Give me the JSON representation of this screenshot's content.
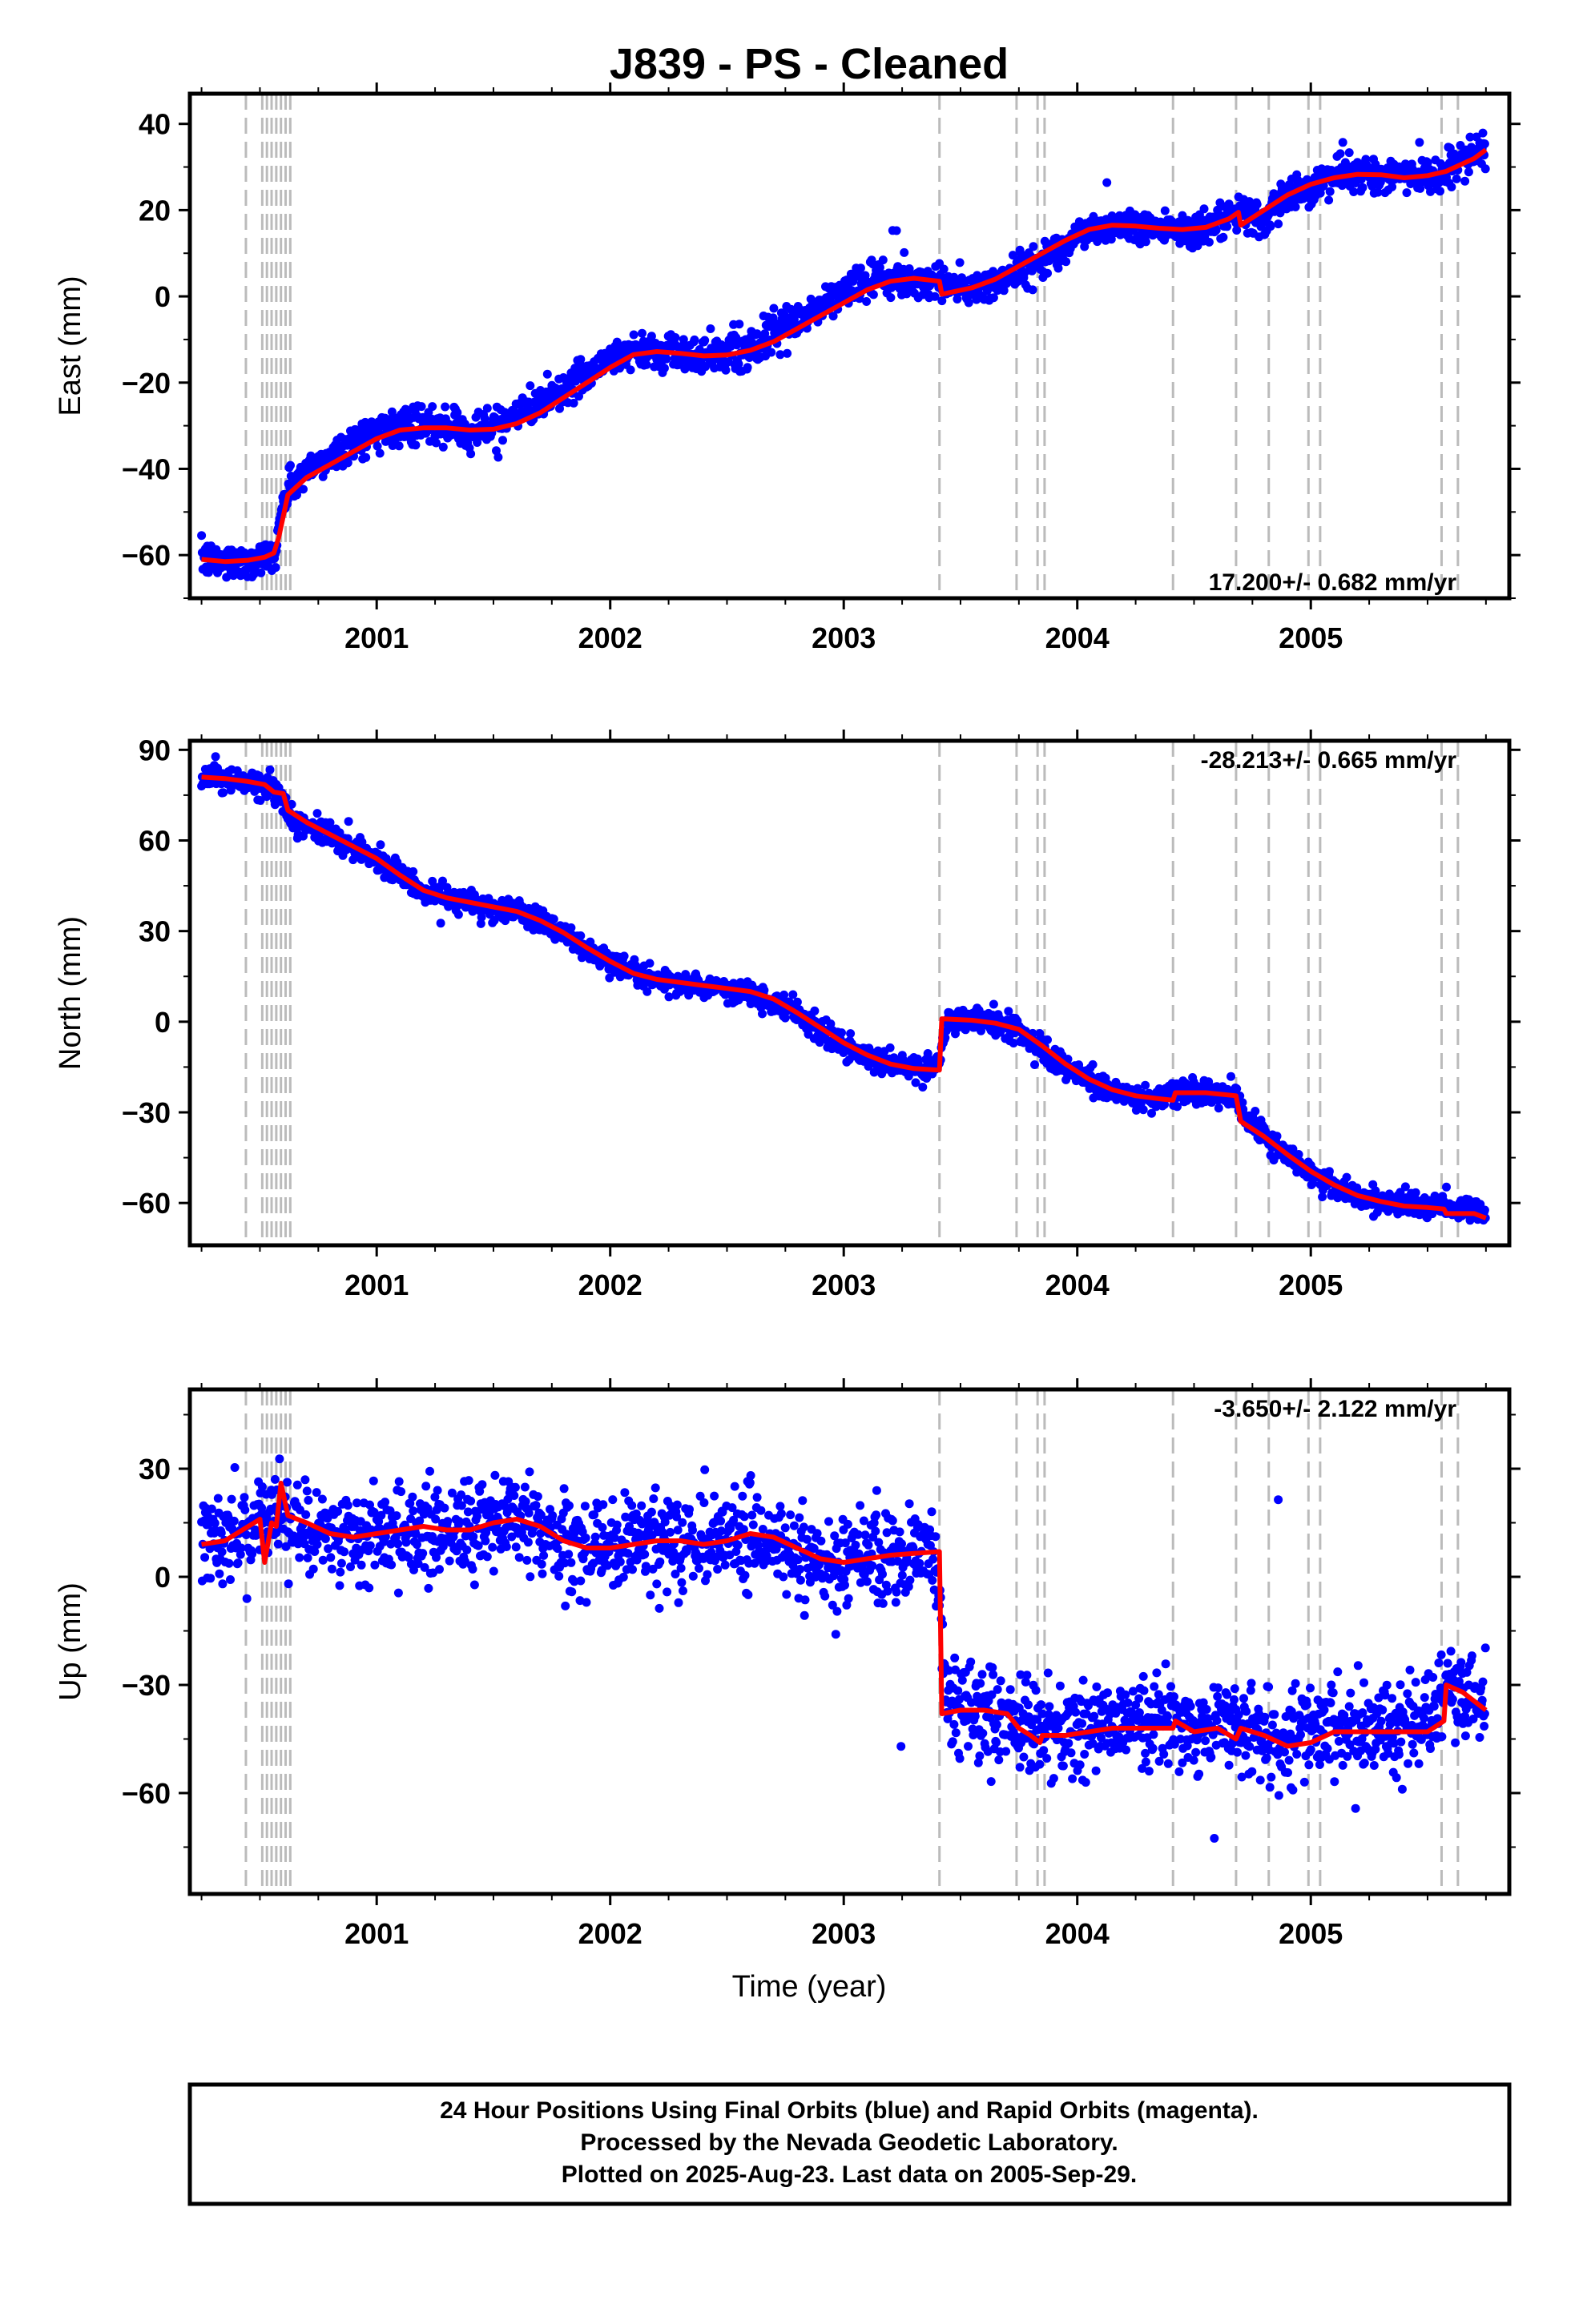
{
  "title": "J839  - PS - Cleaned",
  "xlabel": "Time (year)",
  "footer": {
    "line1": "24 Hour Positions Using Final Orbits (blue) and Rapid Orbits (magenta).",
    "line2": "Processed by the Nevada Geodetic Laboratory.",
    "line3": "Plotted on 2025-Aug-23. Last data on 2005-Sep-29."
  },
  "colors": {
    "final_orbits": "#0000ff",
    "model": "#ff0000",
    "event_lines": "#bbbbbb"
  },
  "chart_data": [
    {
      "type": "scatter",
      "component": "East",
      "ylabel": "East (mm)",
      "xlim": [
        2000.2,
        2005.85
      ],
      "ylim": [
        -70,
        47
      ],
      "yticks": [
        -60,
        -40,
        -20,
        0,
        20,
        40
      ],
      "xticks": [
        2001,
        2002,
        2003,
        2004,
        2005
      ],
      "rate_label": "17.200+/- 0.682 mm/yr",
      "rate_position": "bottom-right",
      "series": [
        {
          "marker": "dot",
          "x": [
            2000.25,
            2000.32,
            2000.4,
            2000.48,
            2000.56,
            2000.6,
            2000.63,
            2000.7,
            2000.78,
            2000.86,
            2000.95,
            2001.05,
            2001.15,
            2001.25,
            2001.35,
            2001.45,
            2001.55,
            2001.65,
            2001.75,
            2001.85,
            2001.95,
            2002.05,
            2002.15,
            2002.25,
            2002.35,
            2002.45,
            2002.55,
            2002.65,
            2002.75,
            2002.85,
            2002.95,
            2003.05,
            2003.15,
            2003.25,
            2003.35,
            2003.45,
            2003.55,
            2003.65,
            2003.75,
            2003.85,
            2003.95,
            2004.05,
            2004.15,
            2004.25,
            2004.35,
            2004.45,
            2004.55,
            2004.65,
            2004.7,
            2004.78,
            2004.86,
            2004.95,
            2005.05,
            2005.15,
            2005.25,
            2005.35,
            2005.45,
            2005.55,
            2005.62,
            2005.7,
            2005.75
          ],
          "y": [
            -61,
            -61.5,
            -61.5,
            -61,
            -60,
            -48,
            -44,
            -41,
            -38,
            -35,
            -32.5,
            -30.5,
            -30,
            -30.5,
            -31,
            -30.5,
            -29,
            -26,
            -23,
            -19.5,
            -16,
            -13,
            -12.5,
            -13,
            -13.5,
            -13.5,
            -12.5,
            -10.5,
            -7.5,
            -4,
            -0.5,
            2.5,
            4,
            4,
            3.5,
            3,
            1.5,
            3,
            6,
            9,
            12,
            15.5,
            16.5,
            16.5,
            16,
            15.5,
            16,
            17.5,
            19.5,
            17.5,
            21,
            24.5,
            27,
            28,
            28.5,
            28,
            28,
            28.5,
            30.5,
            32,
            34
          ]
        }
      ],
      "model": {
        "x": [
          2000.25,
          2000.35,
          2000.45,
          2000.52,
          2000.56,
          2000.58,
          2000.62,
          2000.7,
          2000.8,
          2000.9,
          2001.0,
          2001.1,
          2001.2,
          2001.3,
          2001.4,
          2001.5,
          2001.6,
          2001.7,
          2001.8,
          2001.9,
          2002.0,
          2002.1,
          2002.2,
          2002.3,
          2002.4,
          2002.5,
          2002.6,
          2002.7,
          2002.8,
          2002.9,
          2003.0,
          2003.1,
          2003.2,
          2003.3,
          2003.41,
          2003.42,
          2003.55,
          2003.65,
          2003.75,
          2003.85,
          2003.95,
          2004.05,
          2004.15,
          2004.25,
          2004.35,
          2004.45,
          2004.55,
          2004.65,
          2004.69,
          2004.7,
          2004.8,
          2004.9,
          2005.0,
          2005.1,
          2005.2,
          2005.3,
          2005.4,
          2005.5,
          2005.58,
          2005.62,
          2005.7,
          2005.75
        ],
        "y": [
          -61,
          -61.5,
          -61.2,
          -60.5,
          -59.5,
          -56,
          -46,
          -42,
          -39,
          -36,
          -33,
          -31,
          -30.5,
          -30.5,
          -31,
          -30.8,
          -29.5,
          -27,
          -23.5,
          -20,
          -16.5,
          -13.5,
          -12.8,
          -13.2,
          -13.8,
          -13.6,
          -12.5,
          -10.5,
          -7.5,
          -4.5,
          -1.5,
          1.5,
          3.5,
          4.2,
          3.5,
          0.5,
          2,
          4,
          7,
          10,
          13,
          15.5,
          16.5,
          16.3,
          15.8,
          15.5,
          16,
          18,
          19.5,
          16.5,
          20,
          23.5,
          26,
          27.5,
          28.3,
          28.2,
          27.5,
          28,
          29,
          30,
          32,
          34
        ]
      }
    },
    {
      "type": "scatter",
      "component": "North",
      "ylabel": "North (mm)",
      "xlim": [
        2000.2,
        2005.85
      ],
      "ylim": [
        -74,
        93
      ],
      "yticks": [
        -60,
        -30,
        0,
        30,
        60,
        90
      ],
      "xticks": [
        2001,
        2002,
        2003,
        2004,
        2005
      ],
      "rate_label": "-28.213+/- 0.665 mm/yr",
      "rate_position": "top-right",
      "series": [
        {
          "marker": "dot",
          "x": [
            2000.25,
            2000.35,
            2000.45,
            2000.52,
            2000.58,
            2000.63,
            2000.7,
            2000.8,
            2000.9,
            2001.0,
            2001.1,
            2001.2,
            2001.3,
            2001.4,
            2001.5,
            2001.6,
            2001.7,
            2001.8,
            2001.9,
            2002.0,
            2002.1,
            2002.2,
            2002.3,
            2002.4,
            2002.5,
            2002.6,
            2002.7,
            2002.8,
            2002.9,
            2003.0,
            2003.1,
            2003.2,
            2003.3,
            2003.4,
            2003.45,
            2003.55,
            2003.65,
            2003.75,
            2003.85,
            2003.95,
            2004.05,
            2004.15,
            2004.25,
            2004.35,
            2004.42,
            2004.5,
            2004.6,
            2004.68,
            2004.72,
            2004.8,
            2004.9,
            2005.0,
            2005.1,
            2005.2,
            2005.3,
            2005.4,
            2005.5,
            2005.6,
            2005.7,
            2005.75
          ],
          "y": [
            81,
            80.5,
            79,
            78,
            76,
            68,
            65,
            61,
            57.5,
            53,
            49,
            43,
            40.5,
            39,
            38,
            36.5,
            33.5,
            29,
            24,
            20,
            16,
            14,
            12.5,
            11.5,
            10.5,
            9.5,
            7,
            2.5,
            -3,
            -8,
            -11.5,
            -14,
            -15.5,
            -16,
            1,
            0.5,
            0,
            -3,
            -9,
            -15,
            -19.5,
            -23,
            -24.5,
            -25.5,
            -24,
            -24,
            -24,
            -25,
            -32,
            -38,
            -44,
            -49.5,
            -54,
            -57.5,
            -59.5,
            -60.5,
            -61,
            -61.5,
            -62.5,
            -64
          ]
        }
      ],
      "model": {
        "x": [
          2000.25,
          2000.35,
          2000.45,
          2000.52,
          2000.56,
          2000.6,
          2000.62,
          2000.7,
          2000.8,
          2000.9,
          2001.0,
          2001.1,
          2001.2,
          2001.3,
          2001.4,
          2001.5,
          2001.6,
          2001.7,
          2001.8,
          2001.9,
          2002.0,
          2002.1,
          2002.2,
          2002.3,
          2002.4,
          2002.5,
          2002.6,
          2002.7,
          2002.8,
          2002.9,
          2003.0,
          2003.1,
          2003.2,
          2003.3,
          2003.41,
          2003.42,
          2003.55,
          2003.65,
          2003.75,
          2003.85,
          2003.95,
          2004.05,
          2004.15,
          2004.25,
          2004.35,
          2004.41,
          2004.42,
          2004.55,
          2004.68,
          2004.7,
          2004.8,
          2004.9,
          2005.0,
          2005.1,
          2005.2,
          2005.3,
          2005.4,
          2005.5,
          2005.57,
          2005.58,
          2005.7,
          2005.75
        ],
        "y": [
          81,
          80.5,
          79.5,
          78.5,
          76,
          75.5,
          70,
          66,
          62,
          58,
          54,
          48.5,
          43.5,
          41,
          39.5,
          38,
          36.5,
          33.5,
          29.5,
          24.5,
          20,
          16,
          14,
          13,
          12,
          11,
          10,
          7.5,
          3,
          -2,
          -7,
          -11,
          -14,
          -15.5,
          -16,
          1,
          0.5,
          -0.5,
          -2.5,
          -8,
          -14,
          -19,
          -22.5,
          -24.5,
          -25.5,
          -26,
          -23.5,
          -23.5,
          -24.5,
          -33,
          -38,
          -44,
          -49.5,
          -54,
          -57.5,
          -59.5,
          -61,
          -61.5,
          -62,
          -63.5,
          -63.5,
          -65
        ]
      }
    },
    {
      "type": "scatter",
      "component": "Up",
      "ylabel": "Up (mm)",
      "xlim": [
        2000.2,
        2005.85
      ],
      "ylim": [
        -88,
        52
      ],
      "yticks": [
        -60,
        -30,
        0,
        30
      ],
      "xticks": [
        2001,
        2002,
        2003,
        2004,
        2005
      ],
      "rate_label": "-3.650+/- 2.122 mm/yr",
      "rate_position": "top-right",
      "series": [
        {
          "marker": "dot",
          "x": [
            2000.25,
            2000.35,
            2000.45,
            2000.52,
            2000.57,
            2000.62,
            2000.7,
            2000.8,
            2000.9,
            2001.0,
            2001.1,
            2001.2,
            2001.3,
            2001.4,
            2001.5,
            2001.6,
            2001.7,
            2001.8,
            2001.9,
            2002.0,
            2002.1,
            2002.2,
            2002.3,
            2002.4,
            2002.5,
            2002.6,
            2002.7,
            2002.8,
            2002.9,
            2003.0,
            2003.1,
            2003.2,
            2003.3,
            2003.38,
            2003.45,
            2003.55,
            2003.65,
            2003.75,
            2003.85,
            2003.95,
            2004.05,
            2004.15,
            2004.25,
            2004.35,
            2004.45,
            2004.55,
            2004.65,
            2004.75,
            2004.85,
            2004.95,
            2005.05,
            2005.15,
            2005.25,
            2005.35,
            2005.45,
            2005.52,
            2005.58,
            2005.65,
            2005.75
          ],
          "y": [
            9,
            10,
            12,
            14,
            20,
            17,
            14,
            12,
            11,
            12,
            13,
            14,
            13,
            13,
            15,
            15,
            12,
            9,
            8,
            9,
            10,
            10,
            9,
            10,
            12,
            11,
            8,
            5,
            4,
            5,
            6,
            7,
            6,
            7,
            -37,
            -37,
            -38,
            -42,
            -44,
            -43,
            -42,
            -42,
            -42,
            -41,
            -42,
            -42,
            -43,
            -44,
            -46,
            -45,
            -42,
            -42,
            -42,
            -42,
            -41,
            -39,
            -30,
            -33,
            -36
          ]
        }
      ],
      "model": {
        "x": [
          2000.25,
          2000.35,
          2000.45,
          2000.5,
          2000.52,
          2000.55,
          2000.57,
          2000.59,
          2000.62,
          2000.7,
          2000.8,
          2000.9,
          2001.0,
          2001.1,
          2001.2,
          2001.3,
          2001.4,
          2001.5,
          2001.6,
          2001.7,
          2001.8,
          2001.9,
          2002.0,
          2002.1,
          2002.2,
          2002.3,
          2002.4,
          2002.5,
          2002.6,
          2002.7,
          2002.8,
          2002.9,
          2003.0,
          2003.1,
          2003.2,
          2003.3,
          2003.41,
          2003.42,
          2003.5,
          2003.6,
          2003.7,
          2003.75,
          2003.8,
          2003.84,
          2003.85,
          2003.95,
          2004.05,
          2004.15,
          2004.25,
          2004.35,
          2004.41,
          2004.42,
          2004.5,
          2004.6,
          2004.68,
          2004.7,
          2004.8,
          2004.9,
          2005.0,
          2005.1,
          2005.2,
          2005.3,
          2005.4,
          2005.5,
          2005.57,
          2005.58,
          2005.65,
          2005.75
        ],
        "y": [
          9,
          10,
          14,
          16,
          4,
          15,
          14,
          26,
          17,
          15,
          12,
          11,
          12,
          13,
          14,
          13,
          13,
          15,
          16,
          14,
          10,
          8,
          8,
          9,
          10,
          10,
          9,
          10,
          12,
          11,
          8,
          5,
          4,
          5,
          6,
          6.5,
          7,
          -38,
          -37,
          -37,
          -38,
          -42,
          -44,
          -46,
          -44,
          -44,
          -43,
          -42,
          -42,
          -42,
          -42,
          -40,
          -43,
          -42,
          -45,
          -42,
          -44,
          -47,
          -46,
          -43,
          -43,
          -43,
          -43,
          -43,
          -40,
          -30,
          -32,
          -37
        ]
      }
    }
  ],
  "event_lines": [
    2000.44,
    2000.51,
    2000.53,
    2000.55,
    2000.57,
    2000.59,
    2000.61,
    2000.63,
    2003.41,
    2003.74,
    2003.83,
    2003.86,
    2004.41,
    2004.68,
    2004.82,
    2004.99,
    2005.04,
    2005.56,
    2005.63
  ]
}
